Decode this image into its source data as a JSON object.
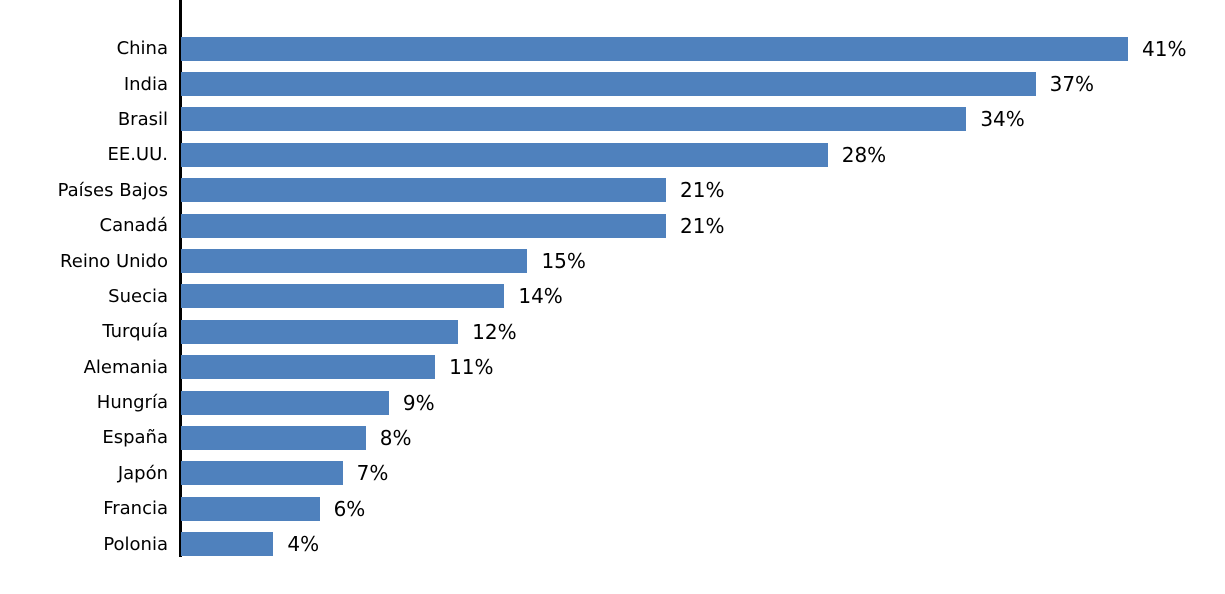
{
  "chart_data": {
    "type": "bar",
    "orientation": "horizontal",
    "title": "",
    "xlabel": "",
    "ylabel": "",
    "categories": [
      "China",
      "India",
      "Brasil",
      "EE.UU.",
      "Países Bajos",
      "Canadá",
      "Reino Unido",
      "Suecia",
      "Turquía",
      "Alemania",
      "Hungría",
      "España",
      "Japón",
      "Francia",
      "Polonia"
    ],
    "values": [
      41,
      37,
      34,
      28,
      21,
      21,
      15,
      14,
      12,
      11,
      9,
      8,
      7,
      6,
      4
    ],
    "value_labels": [
      "41%",
      "37%",
      "34%",
      "28%",
      "21%",
      "21%",
      "15%",
      "14%",
      "12%",
      "11%",
      "9%",
      "8%",
      "7%",
      "6%",
      "4%"
    ],
    "unit": "%",
    "xlim": [
      0,
      41
    ],
    "grid": false,
    "legend": null,
    "data_labels": "outside-end",
    "bar_color": "#4f81bd",
    "axis_line_color": "#000000",
    "text_color": "#000000"
  }
}
